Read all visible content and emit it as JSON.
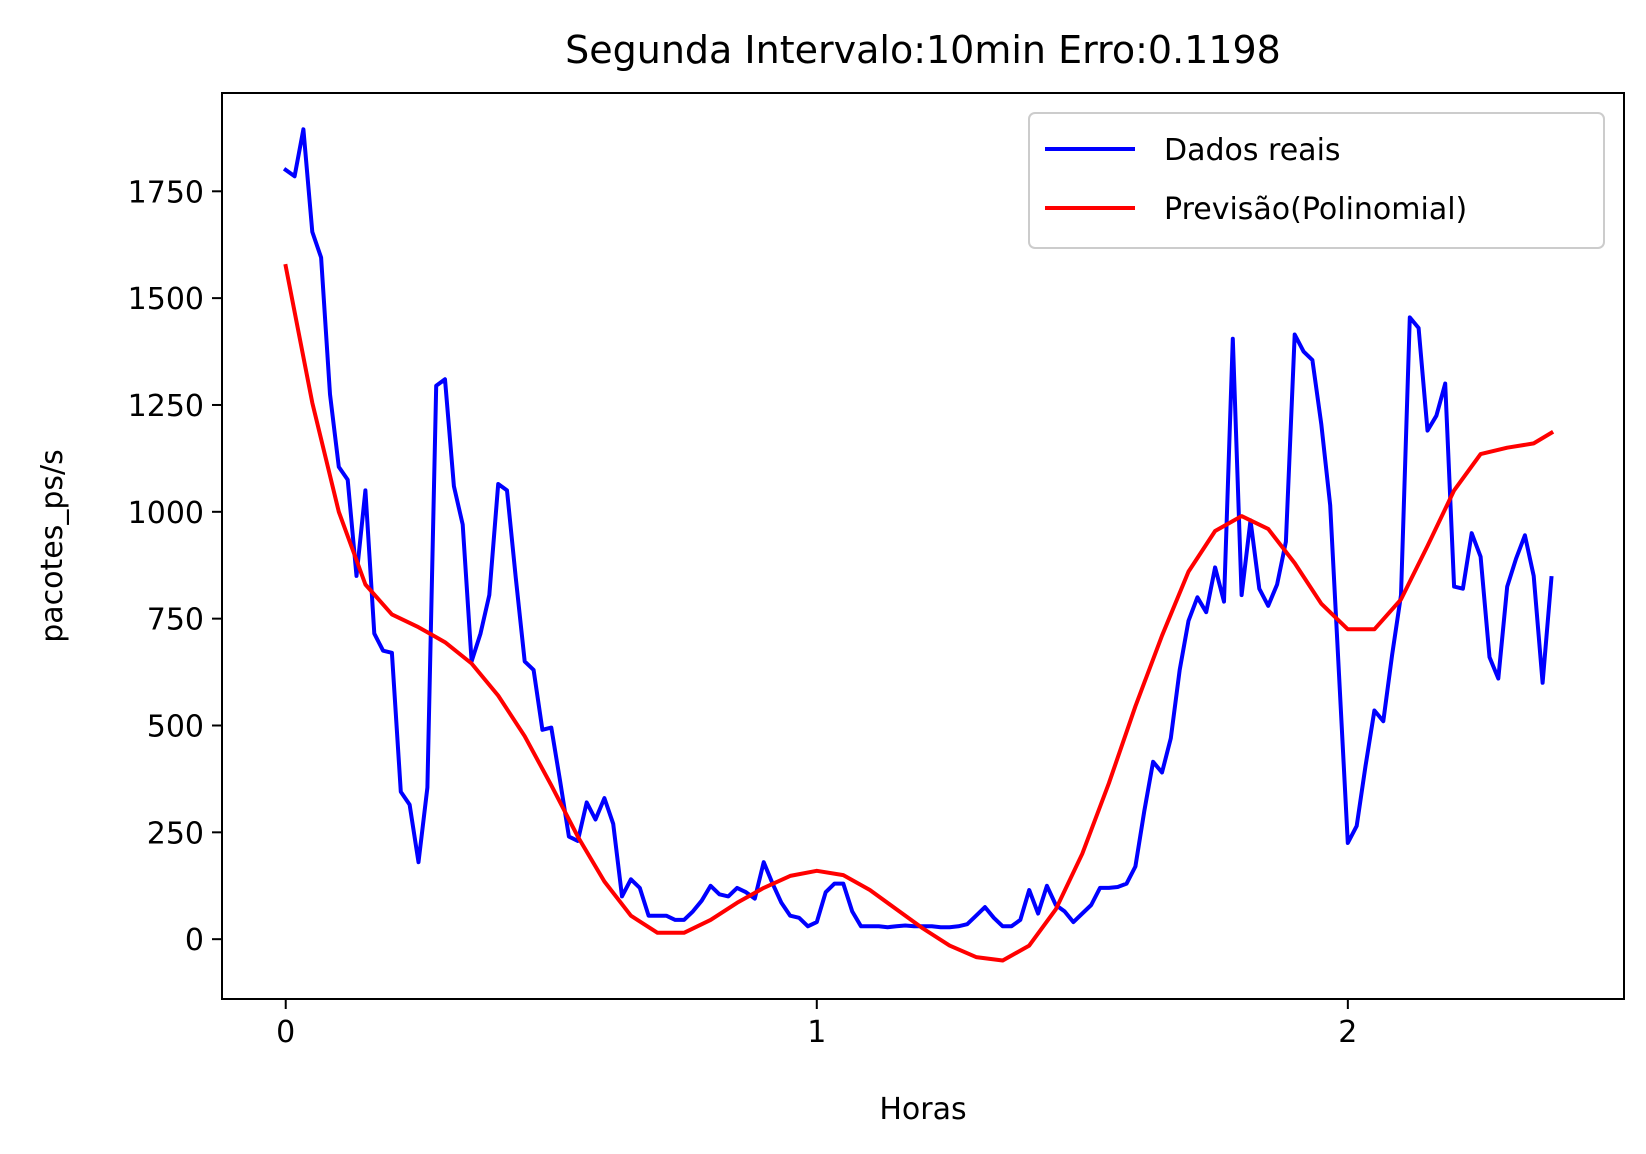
{
  "chart_data": {
    "type": "line",
    "title": "Segunda Intervalo:10min Erro:0.1198",
    "xlabel": "Horas",
    "ylabel": "pacotes_ps/s",
    "xlim": [
      -0.12,
      2.52
    ],
    "ylim": [
      -140,
      1980
    ],
    "x_ticks": [
      0,
      1,
      2
    ],
    "x_tick_labels": [
      "0",
      "1",
      "2"
    ],
    "y_ticks": [
      0,
      250,
      500,
      750,
      1000,
      1250,
      1500,
      1750
    ],
    "y_tick_labels": [
      "0",
      "250",
      "500",
      "750",
      "1000",
      "1250",
      "1500",
      "1750"
    ],
    "grid": false,
    "legend_position": "top-right",
    "series": [
      {
        "name": "Dados reais",
        "color": "#0000ff",
        "x": [
          0,
          0.0167,
          0.0333,
          0.05,
          0.0667,
          0.0833,
          0.1,
          0.1167,
          0.1333,
          0.15,
          0.1667,
          0.1833,
          0.2,
          0.2167,
          0.2333,
          0.25,
          0.2667,
          0.2833,
          0.3,
          0.3167,
          0.3333,
          0.35,
          0.3667,
          0.3833,
          0.4,
          0.4167,
          0.4333,
          0.45,
          0.4667,
          0.4833,
          0.5,
          0.5167,
          0.5333,
          0.55,
          0.5667,
          0.5833,
          0.6,
          0.6167,
          0.6333,
          0.65,
          0.6667,
          0.6833,
          0.7,
          0.7167,
          0.7333,
          0.75,
          0.7667,
          0.7833,
          0.8,
          0.8167,
          0.8333,
          0.85,
          0.8667,
          0.8833,
          0.9,
          0.9167,
          0.9333,
          0.95,
          0.9667,
          0.9833,
          1.0,
          1.0167,
          1.0333,
          1.05,
          1.0667,
          1.0833,
          1.1,
          1.1167,
          1.1333,
          1.15,
          1.1667,
          1.1833,
          1.2,
          1.2167,
          1.2333,
          1.25,
          1.2667,
          1.2833,
          1.3,
          1.3167,
          1.3333,
          1.35,
          1.3667,
          1.3833,
          1.4,
          1.4167,
          1.4333,
          1.45,
          1.4667,
          1.4833,
          1.5,
          1.5167,
          1.5333,
          1.55,
          1.5667,
          1.5833,
          1.6,
          1.6167,
          1.6333,
          1.65,
          1.6667,
          1.6833,
          1.7,
          1.7167,
          1.7333,
          1.75,
          1.7667,
          1.7833,
          1.8,
          1.8167,
          1.8333,
          1.85,
          1.8667,
          1.8833,
          1.9,
          1.9167,
          1.9333,
          1.95,
          1.9667,
          1.9833,
          2.0,
          2.0167,
          2.0333,
          2.05,
          2.0667,
          2.0833,
          2.1,
          2.1167,
          2.1333,
          2.15,
          2.1667,
          2.1833,
          2.2,
          2.2167,
          2.2333,
          2.25,
          2.2667,
          2.2833,
          2.3,
          2.3167,
          2.3333,
          2.35,
          2.3667,
          2.3833
        ],
        "y": [
          1800,
          1785,
          1895,
          1655,
          1595,
          1275,
          1105,
          1075,
          850,
          1050,
          715,
          675,
          670,
          345,
          315,
          180,
          355,
          1295,
          1310,
          1060,
          970,
          650,
          715,
          805,
          1065,
          1050,
          845,
          650,
          630,
          490,
          495,
          370,
          240,
          230,
          320,
          280,
          330,
          270,
          100,
          140,
          120,
          55,
          55,
          55,
          45,
          45,
          65,
          90,
          125,
          105,
          100,
          120,
          110,
          95,
          180,
          130,
          85,
          55,
          50,
          30,
          40,
          110,
          130,
          130,
          65,
          30,
          30,
          30,
          28,
          30,
          32,
          30,
          30,
          30,
          28,
          28,
          30,
          35,
          55,
          75,
          50,
          30,
          30,
          45,
          115,
          60,
          125,
          80,
          65,
          40,
          60,
          80,
          120,
          120,
          122,
          130,
          170,
          300,
          415,
          390,
          470,
          630,
          745,
          800,
          765,
          870,
          790,
          1405,
          805,
          980,
          820,
          780,
          830,
          930,
          1415,
          1375,
          1355,
          1205,
          1015,
          620,
          225,
          265,
          405,
          535,
          510,
          665,
          805,
          1455,
          1430,
          1190,
          1225,
          1300,
          825,
          820,
          950,
          895,
          660,
          610,
          825,
          890,
          945,
          850,
          600,
          845
        ]
      },
      {
        "name": "Previsão(Polinomial)",
        "color": "#ff0000",
        "x": [
          0,
          0.05,
          0.1,
          0.15,
          0.2,
          0.25,
          0.3,
          0.35,
          0.4,
          0.45,
          0.5,
          0.55,
          0.6,
          0.65,
          0.7,
          0.75,
          0.8,
          0.85,
          0.9,
          0.95,
          1.0,
          1.05,
          1.1,
          1.15,
          1.2,
          1.25,
          1.3,
          1.35,
          1.4,
          1.45,
          1.5,
          1.55,
          1.6,
          1.65,
          1.7,
          1.75,
          1.8,
          1.85,
          1.9,
          1.95,
          2.0,
          2.05,
          2.1,
          2.15,
          2.2,
          2.25,
          2.3,
          2.35,
          2.3833
        ],
        "y": [
          1575,
          1255,
          1000,
          830,
          760,
          730,
          695,
          645,
          570,
          475,
          360,
          240,
          135,
          55,
          15,
          15,
          45,
          85,
          120,
          148,
          160,
          150,
          115,
          70,
          25,
          -15,
          -42,
          -50,
          -15,
          70,
          200,
          365,
          545,
          710,
          860,
          955,
          990,
          960,
          880,
          785,
          725,
          725,
          795,
          920,
          1050,
          1135,
          1150,
          1160,
          1185
        ]
      }
    ]
  }
}
